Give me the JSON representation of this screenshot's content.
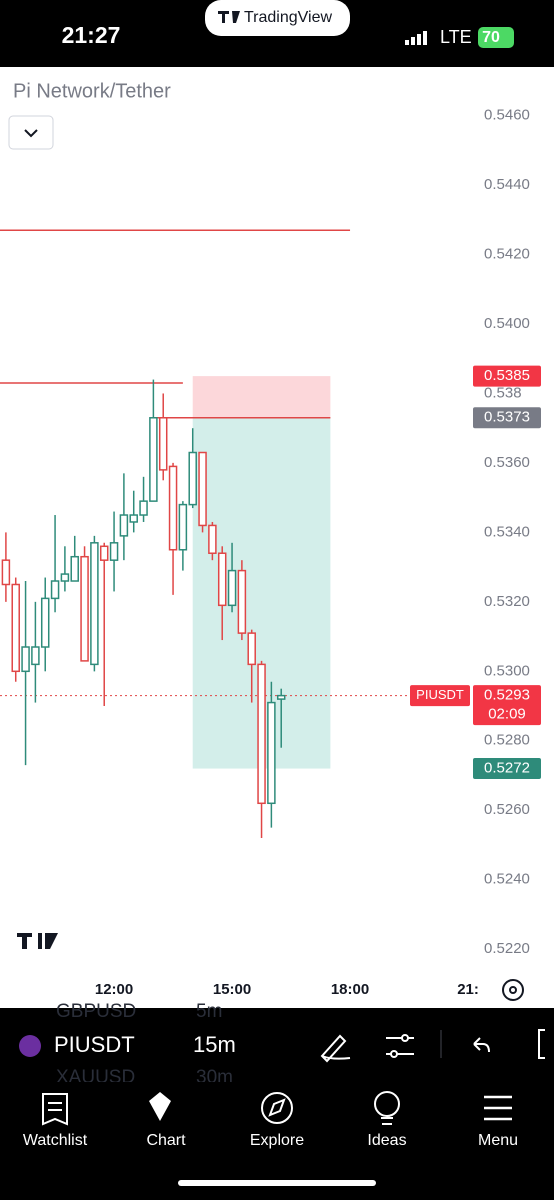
{
  "status_bar": {
    "time": "21:27",
    "app": "TradingView",
    "network": "LTE",
    "battery": "70"
  },
  "chart_data": {
    "type": "candlestick",
    "title": "Pi Network/Tether",
    "x": [
      9.25,
      9.5,
      9.75,
      10,
      10.25,
      10.5,
      10.75,
      11,
      11.25,
      11.5,
      11.75,
      12,
      12.25,
      12.5,
      12.75,
      13,
      13.25,
      13.5,
      13.75,
      14,
      14.25,
      14.5,
      14.75,
      15,
      15.25,
      15.5,
      15.75,
      16,
      16.25
    ],
    "open": [
      0.5332,
      0.5325,
      0.53,
      0.5302,
      0.5307,
      0.5321,
      0.5326,
      0.5326,
      0.5333,
      0.5302,
      0.5336,
      0.5332,
      0.5339,
      0.5343,
      0.5345,
      0.5349,
      0.5373,
      0.5359,
      0.5335,
      0.5348,
      0.5363,
      0.5342,
      0.5334,
      0.5319,
      0.5329,
      0.5311,
      0.5302,
      0.5262,
      0.5292
    ],
    "high": [
      0.534,
      0.5327,
      0.5326,
      0.532,
      0.5327,
      0.5345,
      0.5336,
      0.5339,
      0.5336,
      0.5339,
      0.5337,
      0.5346,
      0.5357,
      0.5352,
      0.5356,
      0.5384,
      0.538,
      0.536,
      0.5349,
      0.537,
      0.5363,
      0.5343,
      0.5336,
      0.5337,
      0.5332,
      0.5312,
      0.5303,
      0.5297,
      0.5295
    ],
    "low": [
      0.532,
      0.5297,
      0.5273,
      0.5291,
      0.53,
      0.5317,
      0.5323,
      0.5326,
      0.5303,
      0.53,
      0.529,
      0.5323,
      0.5332,
      0.534,
      0.5343,
      0.5349,
      0.5355,
      0.5322,
      0.5329,
      0.5347,
      0.534,
      0.5332,
      0.5309,
      0.5317,
      0.5309,
      0.5291,
      0.5252,
      0.5255,
      0.5278
    ],
    "close": [
      0.5325,
      0.53,
      0.5307,
      0.5307,
      0.5321,
      0.5326,
      0.5328,
      0.5333,
      0.5303,
      0.5337,
      0.5332,
      0.5337,
      0.5345,
      0.5345,
      0.5349,
      0.5373,
      0.5358,
      0.5335,
      0.5348,
      0.5363,
      0.5342,
      0.5334,
      0.5319,
      0.5329,
      0.5311,
      0.5302,
      0.5262,
      0.5291,
      0.5293
    ],
    "up_color": "#2e8b7a",
    "down_color": "#e04646",
    "xlim": [
      9.1,
      21.05
    ],
    "ylim": [
      0.5214,
      0.5474
    ],
    "xticks": [
      {
        "value": 12,
        "label": "12:00"
      },
      {
        "value": 15,
        "label": "15:00"
      },
      {
        "value": 18,
        "label": "18:00"
      },
      {
        "value": 21,
        "label": "21:"
      }
    ],
    "yticks": [
      {
        "value": 0.546,
        "label": "0.5460"
      },
      {
        "value": 0.544,
        "label": "0.5440"
      },
      {
        "value": 0.542,
        "label": "0.5420"
      },
      {
        "value": 0.54,
        "label": "0.5400"
      },
      0.538,
      {
        "value": 0.536,
        "label": "0.5360"
      },
      {
        "value": 0.534,
        "label": "0.5340"
      },
      {
        "value": 0.532,
        "label": "0.5320"
      },
      {
        "value": 0.53,
        "label": "0.5300"
      },
      {
        "value": 0.528,
        "label": "0.5280"
      },
      {
        "value": 0.526,
        "label": "0.5260"
      },
      {
        "value": 0.524,
        "label": "0.5240"
      },
      {
        "value": 0.522,
        "label": "0.5220"
      }
    ],
    "lines": [
      {
        "value": 0.5427,
        "x_end": 18.0
      },
      {
        "value": 0.5383,
        "x_end": 13.75
      }
    ],
    "position": {
      "stop": 0.5385,
      "entry": 0.5373,
      "target": 0.5272,
      "x_start": 14.0,
      "x_end": 17.5
    },
    "last_price": 0.5293,
    "countdown": "02:09",
    "symbol_label": "PIUSDT"
  },
  "toolbar": {
    "symbol": "PIUSDT",
    "interval": "15m",
    "ghost": [
      "GBPUSD",
      "5m",
      "XAUUSD",
      "30m"
    ]
  },
  "nav": [
    "Watchlist",
    "Chart",
    "Explore",
    "Ideas",
    "Menu"
  ]
}
